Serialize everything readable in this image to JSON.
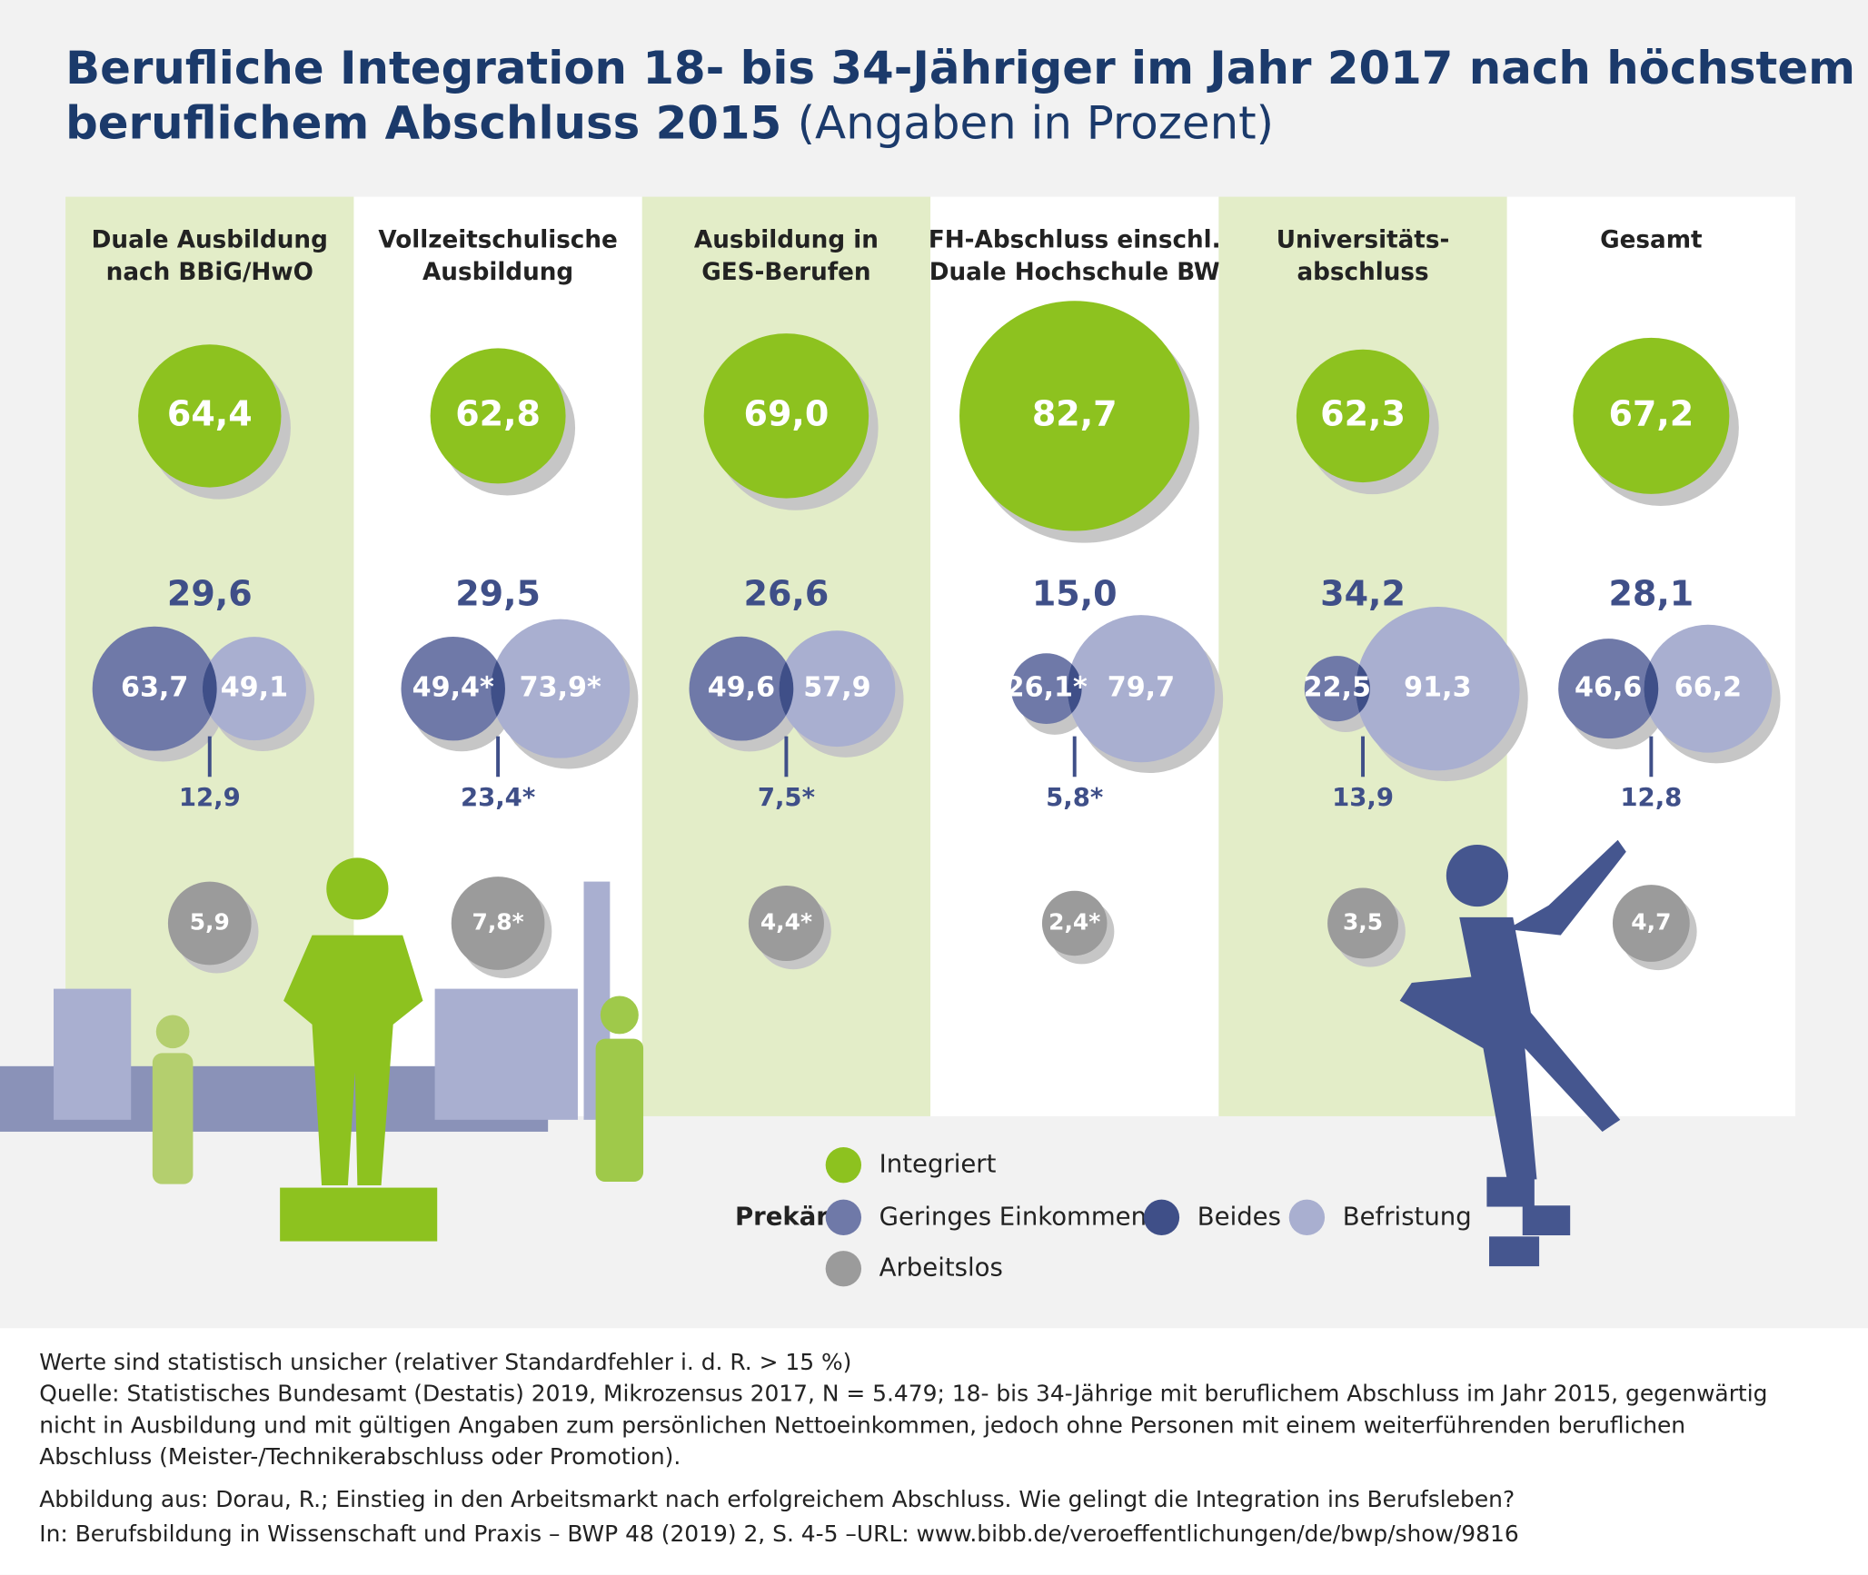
{
  "chart_data": {
    "type": "bubble",
    "title": [
      "Berufliche Integration 18- bis 34-Jähriger im Jahr 2017 nach höchstem",
      "beruflichem Abschluss 2015"
    ],
    "subtitle": "(Angaben in Prozent)",
    "categories": [
      [
        "Duale Ausbildung",
        "nach BBiG/HwO"
      ],
      [
        "Vollzeitschulische",
        "Ausbildung"
      ],
      [
        "Ausbildung in",
        "GES-Berufen"
      ],
      [
        "FH-Abschluss einschl.",
        "Duale Hochschule BW"
      ],
      [
        "Universitäts-",
        "abschluss"
      ],
      [
        "Gesamt"
      ]
    ],
    "series": [
      {
        "name": "Integriert",
        "color": "#8dc21f",
        "values": [
          64.4,
          62.8,
          69.0,
          82.7,
          62.3,
          67.2
        ],
        "value_labels": [
          "64,4",
          "62,8",
          "69,0",
          "82,7",
          "62,3",
          "67,2"
        ]
      },
      {
        "name": "Prekär:",
        "values": [
          29.6,
          29.5,
          26.6,
          15.0,
          34.2,
          28.1
        ],
        "value_labels": [
          "29,6",
          "29,5",
          "26,6",
          "15,0",
          "34,2",
          "28,1"
        ]
      },
      {
        "name": "Geringes Einkommen",
        "color": "#6f79a8",
        "values": [
          63.7,
          49.4,
          49.6,
          26.1,
          22.5,
          46.6
        ],
        "value_labels": [
          "63,7",
          "49,4*",
          "49,6",
          "26,1*",
          "22,5",
          "46,6"
        ]
      },
      {
        "name": "Beides",
        "color": "#3f4f88",
        "values": [
          12.9,
          23.4,
          7.5,
          5.8,
          13.9,
          12.8
        ],
        "value_labels": [
          "12,9",
          "23,4*",
          "7,5*",
          "5,8*",
          "13,9",
          "12,8"
        ]
      },
      {
        "name": "Befristung",
        "color": "#a9afd0",
        "values": [
          49.1,
          73.9,
          57.9,
          79.7,
          91.3,
          66.2
        ],
        "value_labels": [
          "49,1",
          "73,9*",
          "57,9",
          "79,7",
          "91,3",
          "66,2"
        ]
      },
      {
        "name": "Arbeitslos",
        "color": "#9b9b9b",
        "values": [
          5.9,
          7.8,
          4.4,
          2.4,
          3.5,
          4.7
        ],
        "value_labels": [
          "5,9",
          "7,8*",
          "4,4*",
          "2,4*",
          "3,5",
          "4,7"
        ]
      }
    ],
    "notes": [
      "Werte sind statistisch unsicher (relativer Standardfehler i. d. R. > 15 %)",
      "Quelle: Statistisches Bundesamt (Destatis) 2019, Mikrozensus 2017, N = 5.479; 18- bis 34-Jährige mit beruflichem Abschluss im Jahr 2015, gegenwärtig",
      "nicht in Ausbildung und mit gültigen Angaben zum persönlichen Nettoeinkommen, jedoch ohne Personen mit einem weiterführenden beruflichen",
      "Abschluss (Meister-/Technikerabschluss oder Promotion).",
      "Abbildung aus: Dorau, R.; Einstieg in den Arbeitsmarkt nach erfolgreichem Abschluss. Wie gelingt die Integration ins Berufsleben?",
      "In: Berufsbildung in Wissenschaft und Praxis – BWP 48 (2019) 2, S. 4-5 –URL: www.bibb.de/veroeffentlichungen/de/bwp/show/9816"
    ]
  }
}
